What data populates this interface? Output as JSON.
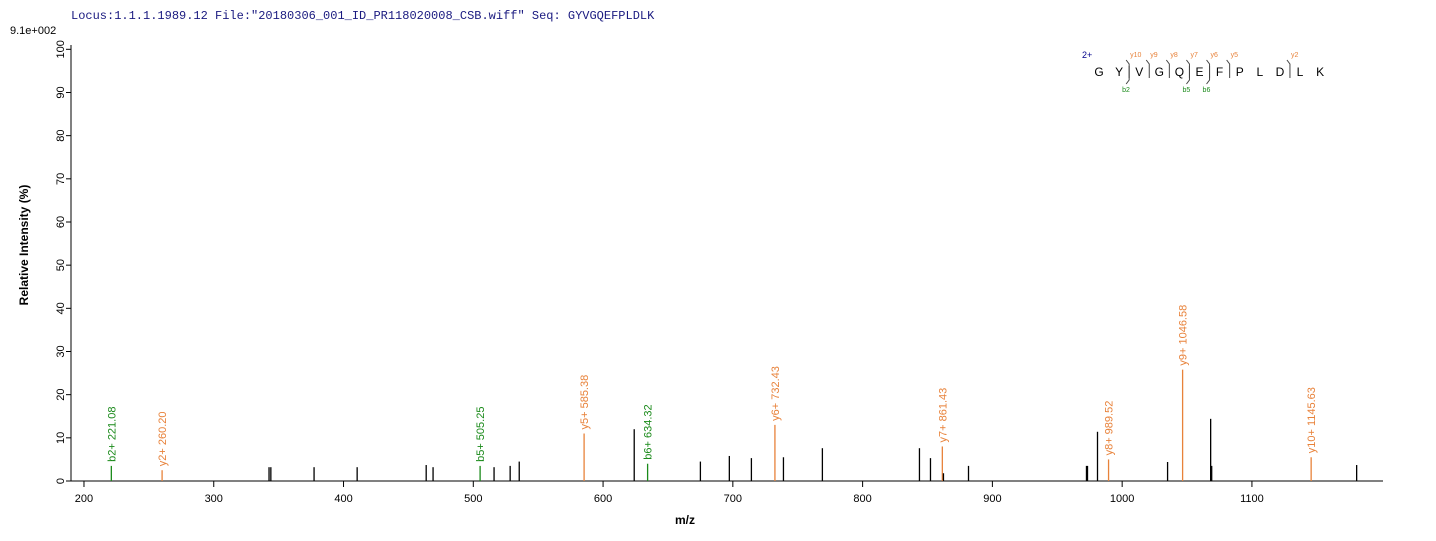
{
  "chart_data": {
    "type": "spectrum",
    "header": "Locus:1.1.1.1989.12 File:\"20180306_001_ID_PR118020008_CSB.wiff\"   Seq: GYVGQEFPLDLK",
    "scale_label": "9.1e+002",
    "xlabel": "m/z",
    "ylabel": "Relative   Intensity (%)",
    "xlim": [
      190,
      1201
    ],
    "ylim": [
      0,
      101
    ],
    "xticks": [
      200,
      300,
      400,
      500,
      600,
      700,
      800,
      900,
      1000,
      1100
    ],
    "yticks": [
      0,
      10,
      20,
      30,
      40,
      50,
      60,
      70,
      80,
      90,
      100
    ],
    "x": [
      221.08,
      260.2,
      342.6,
      344.0,
      377.3,
      410.5,
      463.7,
      469.0,
      505.25,
      516.0,
      528.4,
      535.4,
      585.38,
      624.0,
      634.32,
      675.0,
      697.3,
      714.3,
      732.43,
      739.0,
      769.0,
      843.8,
      852.3,
      861.43,
      862.3,
      881.6,
      972.5,
      973.3,
      981.0,
      989.52,
      1035.0,
      1046.58,
      1068.2,
      1069.0,
      1145.63,
      1180.7
    ],
    "values": [
      3.5,
      2.5,
      3.2,
      3.2,
      3.2,
      3.2,
      3.7,
      3.2,
      3.5,
      3.2,
      3.5,
      4.5,
      11,
      12,
      4,
      4.5,
      5.8,
      5.3,
      13,
      5.5,
      7.6,
      7.6,
      5.3,
      8,
      1.8,
      3.5,
      3.5,
      3.5,
      11.4,
      5,
      4.4,
      25.8,
      14.4,
      3.5,
      5.5,
      3.7
    ],
    "colors": [
      "#1a8a1a",
      "#e8823a",
      "#000000",
      "#000000",
      "#000000",
      "#000000",
      "#000000",
      "#000000",
      "#1a8a1a",
      "#000000",
      "#000000",
      "#000000",
      "#e8823a",
      "#000000",
      "#1a8a1a",
      "#000000",
      "#000000",
      "#000000",
      "#e8823a",
      "#000000",
      "#000000",
      "#000000",
      "#000000",
      "#e8823a",
      "#000000",
      "#000000",
      "#000000",
      "#000000",
      "#000000",
      "#e8823a",
      "#000000",
      "#e8823a",
      "#000000",
      "#000000",
      "#e8823a",
      "#000000"
    ],
    "peak_labels": [
      "b2+ 221.08",
      "y2+ 260.20",
      null,
      null,
      null,
      null,
      null,
      null,
      "b5+ 505.25",
      null,
      null,
      null,
      "y5+ 585.38",
      null,
      "b6+ 634.32",
      null,
      null,
      null,
      "y6+ 732.43",
      null,
      null,
      null,
      null,
      "y7+ 861.43",
      null,
      null,
      null,
      null,
      null,
      "y8+ 989.52",
      null,
      "y9+ 1046.58",
      null,
      null,
      "y10+ 1145.63",
      null
    ],
    "sequence": {
      "charge": "2+",
      "letters": [
        "G",
        "Y",
        "V",
        "G",
        "Q",
        "E",
        "F",
        "P",
        "L",
        "D",
        "L",
        "K"
      ],
      "y_ions": [
        "y10",
        "y9",
        "y8",
        "y7",
        "y6",
        "y5",
        "y2"
      ],
      "b_ions": [
        "b2",
        "b5",
        "b6"
      ]
    }
  }
}
